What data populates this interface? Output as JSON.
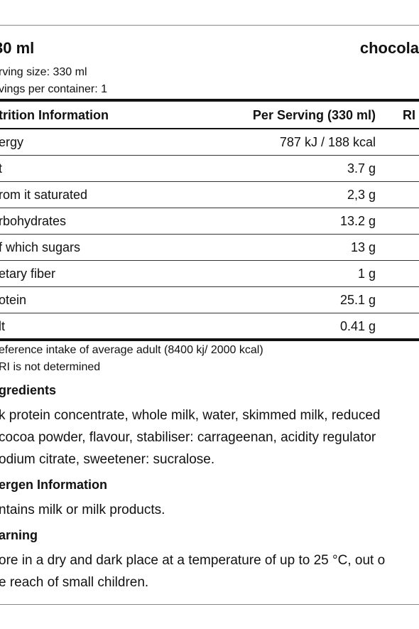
{
  "header": {
    "title": "30 ml",
    "flavour": "chocola",
    "serving_size": "rving size: 330 ml",
    "servings": "vings per container: 1"
  },
  "table": {
    "columns": [
      "trition Information",
      "Per Serving (330 ml)",
      "RI"
    ],
    "rows": [
      [
        "ergy",
        "787 kJ / 188 kcal"
      ],
      [
        "t",
        "3.7 g"
      ],
      [
        "rom it saturated",
        "2,3 g"
      ],
      [
        "rbohydrates",
        "13.2 g"
      ],
      [
        "f which sugars",
        "13 g"
      ],
      [
        "etary fiber",
        "1 g"
      ],
      [
        "otein",
        "25.1 g"
      ],
      [
        "lt",
        "0.41 g"
      ]
    ]
  },
  "footnotes": [
    "eference intake of average adult (8400 kj/ 2000 kcal)",
    "RI is not determined"
  ],
  "sections": [
    {
      "heading": "gredients",
      "lines": [
        "k protein concentrate, whole milk, water, skimmed milk, reduced",
        " cocoa powder, flavour, stabiliser: carrageenan, acidity regulator",
        "odium citrate, sweetener: sucralose."
      ]
    },
    {
      "heading": "ergen Information",
      "lines": [
        "ntains milk or milk products."
      ]
    },
    {
      "heading": "arning",
      "lines": [
        "ore in a dry and dark place at a temperature of up to 25 °C, out o",
        "e reach of small children."
      ]
    }
  ]
}
